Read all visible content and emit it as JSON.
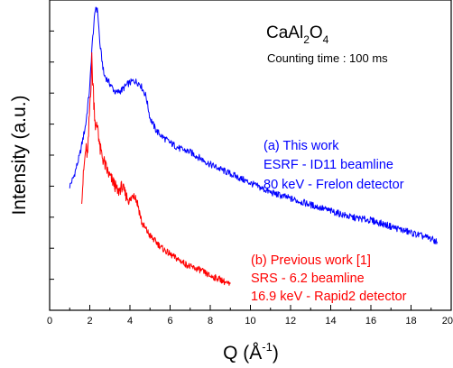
{
  "chart_data": {
    "type": "line",
    "title_main": "CaAl",
    "title_sub1": "2",
    "title_mid": "O",
    "title_sub2": "4",
    "subtitle": "Counting time : 100 ms",
    "xlabel_main": "Q (Å",
    "xlabel_sup": "-1",
    "xlabel_end": ")",
    "ylabel": "Intensity (a.u.)",
    "xlim": [
      0,
      20
    ],
    "ylim": [
      0,
      100
    ],
    "x_ticks": [
      "0",
      "2",
      "4",
      "6",
      "8",
      "10",
      "12",
      "14",
      "16",
      "18",
      "20"
    ],
    "y_ticks_count": 11,
    "y_tick_labels_shown": false,
    "colors": {
      "esrf": "#0000ff",
      "srs": "#ff0000",
      "axis": "#000000"
    },
    "series": [
      {
        "color": "#0000ff",
        "x": [
          1.0,
          1.2,
          1.5,
          1.8,
          2.0,
          2.1,
          2.2,
          2.3,
          2.4,
          2.5,
          2.7,
          2.9,
          3.1,
          3.3,
          3.6,
          3.9,
          4.2,
          4.5,
          4.8,
          5.0,
          5.3,
          5.6,
          6.0,
          6.5,
          7.0,
          7.5,
          8.0,
          9.0,
          10.0,
          11.0,
          12.0,
          13.0,
          14.0,
          15.0,
          16.0,
          17.0,
          18.0,
          18.5,
          19.0,
          19.3
        ],
        "y": [
          40,
          43,
          50,
          60,
          72,
          84,
          92,
          98,
          96,
          86,
          76,
          74,
          72,
          70,
          71,
          73,
          74,
          73,
          69,
          62,
          58,
          56,
          54,
          52,
          51,
          49,
          47,
          44,
          41,
          38,
          36,
          34,
          32,
          30,
          29,
          27,
          25,
          24,
          23,
          22
        ]
      },
      {
        "color": "#ff0000",
        "x": [
          1.6,
          1.7,
          1.8,
          1.9,
          2.0,
          2.1,
          2.2,
          2.3,
          2.4,
          2.5,
          2.6,
          2.8,
          3.0,
          3.2,
          3.4,
          3.6,
          3.8,
          4.0,
          4.2,
          4.4,
          4.6,
          4.8,
          5.0,
          5.3,
          5.6,
          6.0,
          6.5,
          7.0,
          7.5,
          8.0,
          8.5,
          9.0
        ],
        "y": [
          36,
          45,
          52,
          50,
          66,
          80,
          68,
          58,
          60,
          52,
          50,
          46,
          43,
          41,
          38,
          40,
          37,
          35,
          38,
          34,
          28,
          26,
          24,
          22,
          20,
          18,
          16,
          14,
          13,
          11,
          10,
          8
        ]
      }
    ],
    "annotations": {
      "esrf": [
        "(a) This work",
        "ESRF - ID11 beamline",
        "80 keV - Frelon detector"
      ],
      "srs": [
        "(b) Previous work [1]",
        "SRS - 6.2 beamline",
        "16.9 keV - Rapid2 detector"
      ]
    }
  }
}
